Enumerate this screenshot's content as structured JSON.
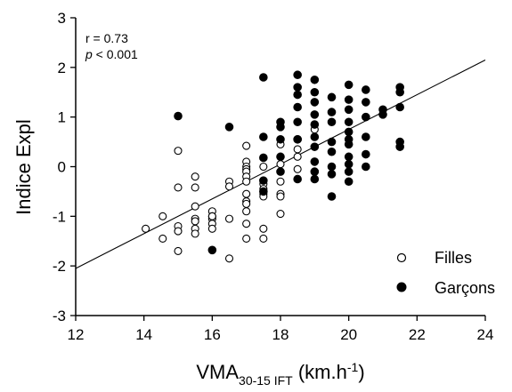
{
  "chart_data": {
    "type": "scatter",
    "title": "",
    "xlabel": {
      "main": "VMA",
      "subscript": "30-15 IFT",
      "unit_prefix": " (km.h",
      "unit_sup": "-1",
      "unit_suffix": ")"
    },
    "ylabel": "Indice Expl",
    "xlim": [
      12,
      24
    ],
    "ylim": [
      -3,
      3
    ],
    "xticks": [
      12,
      14,
      16,
      18,
      20,
      22,
      24
    ],
    "yticks": [
      -3,
      -2,
      -1,
      0,
      1,
      2,
      3
    ],
    "grid": false,
    "legend_position": "bottom-right",
    "annotations": {
      "r_text": "r = 0.73",
      "p_symbol": "p",
      "p_rest": " < 0.001"
    },
    "regression_line": {
      "slope": 0.35,
      "intercept": -6.25,
      "x_range": [
        12,
        24
      ]
    },
    "series": [
      {
        "name": "Filles",
        "marker": "open-circle",
        "points": [
          [
            14.05,
            -1.25
          ],
          [
            14.55,
            -1.0
          ],
          [
            14.55,
            -1.45
          ],
          [
            15.0,
            0.32
          ],
          [
            15.0,
            -0.42
          ],
          [
            15.0,
            -1.2
          ],
          [
            15.0,
            -1.3
          ],
          [
            15.0,
            -1.7
          ],
          [
            15.5,
            -0.2
          ],
          [
            15.5,
            -0.42
          ],
          [
            15.5,
            -0.8
          ],
          [
            15.5,
            -1.05
          ],
          [
            15.5,
            -1.1
          ],
          [
            15.5,
            -1.25
          ],
          [
            15.5,
            -1.35
          ],
          [
            16.0,
            -0.9
          ],
          [
            16.0,
            -1.0
          ],
          [
            16.0,
            -1.05
          ],
          [
            16.0,
            -1.15
          ],
          [
            16.0,
            -1.25
          ],
          [
            16.5,
            -0.3
          ],
          [
            16.5,
            -0.4
          ],
          [
            16.5,
            -1.05
          ],
          [
            16.5,
            -1.85
          ],
          [
            17.0,
            0.42
          ],
          [
            17.0,
            0.1
          ],
          [
            17.0,
            0.0
          ],
          [
            17.0,
            -0.05
          ],
          [
            17.0,
            -0.1
          ],
          [
            17.0,
            -0.2
          ],
          [
            17.0,
            -0.3
          ],
          [
            17.0,
            -0.55
          ],
          [
            17.0,
            -0.7
          ],
          [
            17.0,
            -0.75
          ],
          [
            17.0,
            -0.9
          ],
          [
            17.0,
            -1.15
          ],
          [
            17.0,
            -1.45
          ],
          [
            17.5,
            0.0
          ],
          [
            17.5,
            -0.35
          ],
          [
            17.5,
            -0.55
          ],
          [
            17.5,
            -0.6
          ],
          [
            17.5,
            -1.25
          ],
          [
            17.5,
            -1.45
          ],
          [
            18.0,
            0.05
          ],
          [
            18.0,
            -0.3
          ],
          [
            18.0,
            -0.55
          ],
          [
            18.0,
            -0.6
          ],
          [
            18.0,
            -0.95
          ],
          [
            18.0,
            0.45
          ],
          [
            18.5,
            0.35
          ],
          [
            18.5,
            0.2
          ],
          [
            18.5,
            -0.05
          ],
          [
            19.0,
            0.75
          ],
          [
            16.0,
            -1.0
          ],
          [
            17.5,
            -0.45
          ]
        ]
      },
      {
        "name": "Garçons",
        "marker": "filled-circle",
        "points": [
          [
            15.0,
            1.02
          ],
          [
            16.0,
            -1.68
          ],
          [
            16.5,
            0.8
          ],
          [
            17.5,
            1.8
          ],
          [
            17.5,
            0.6
          ],
          [
            17.5,
            0.18
          ],
          [
            17.5,
            -0.28
          ],
          [
            17.5,
            -0.5
          ],
          [
            18.0,
            0.9
          ],
          [
            18.0,
            0.8
          ],
          [
            18.0,
            0.55
          ],
          [
            18.0,
            0.2
          ],
          [
            18.0,
            -0.1
          ],
          [
            18.5,
            1.85
          ],
          [
            18.5,
            1.6
          ],
          [
            18.5,
            1.45
          ],
          [
            18.5,
            1.2
          ],
          [
            18.5,
            0.9
          ],
          [
            18.5,
            0.55
          ],
          [
            18.5,
            0.55
          ],
          [
            18.5,
            -0.25
          ],
          [
            19.0,
            1.75
          ],
          [
            19.0,
            1.5
          ],
          [
            19.0,
            1.3
          ],
          [
            19.0,
            1.05
          ],
          [
            19.0,
            0.85
          ],
          [
            19.0,
            0.6
          ],
          [
            19.0,
            0.4
          ],
          [
            19.0,
            0.1
          ],
          [
            19.0,
            -0.1
          ],
          [
            19.0,
            -0.25
          ],
          [
            19.5,
            1.4
          ],
          [
            19.5,
            1.1
          ],
          [
            19.5,
            0.9
          ],
          [
            19.5,
            0.5
          ],
          [
            19.5,
            0.3
          ],
          [
            19.5,
            0.0
          ],
          [
            19.5,
            -0.15
          ],
          [
            19.5,
            -0.6
          ],
          [
            20.0,
            1.65
          ],
          [
            20.0,
            1.35
          ],
          [
            20.0,
            1.15
          ],
          [
            20.0,
            0.9
          ],
          [
            20.0,
            0.7
          ],
          [
            20.0,
            0.55
          ],
          [
            20.0,
            0.45
          ],
          [
            20.0,
            0.2
          ],
          [
            20.0,
            0.05
          ],
          [
            20.0,
            -0.1
          ],
          [
            20.0,
            -0.3
          ],
          [
            20.5,
            1.55
          ],
          [
            20.5,
            1.3
          ],
          [
            20.5,
            1.0
          ],
          [
            20.5,
            0.6
          ],
          [
            20.5,
            0.25
          ],
          [
            20.5,
            0.0
          ],
          [
            21.0,
            1.15
          ],
          [
            21.0,
            1.05
          ],
          [
            21.5,
            1.6
          ],
          [
            21.5,
            1.5
          ],
          [
            21.5,
            1.2
          ],
          [
            21.5,
            0.5
          ],
          [
            21.5,
            0.4
          ]
        ]
      }
    ]
  }
}
